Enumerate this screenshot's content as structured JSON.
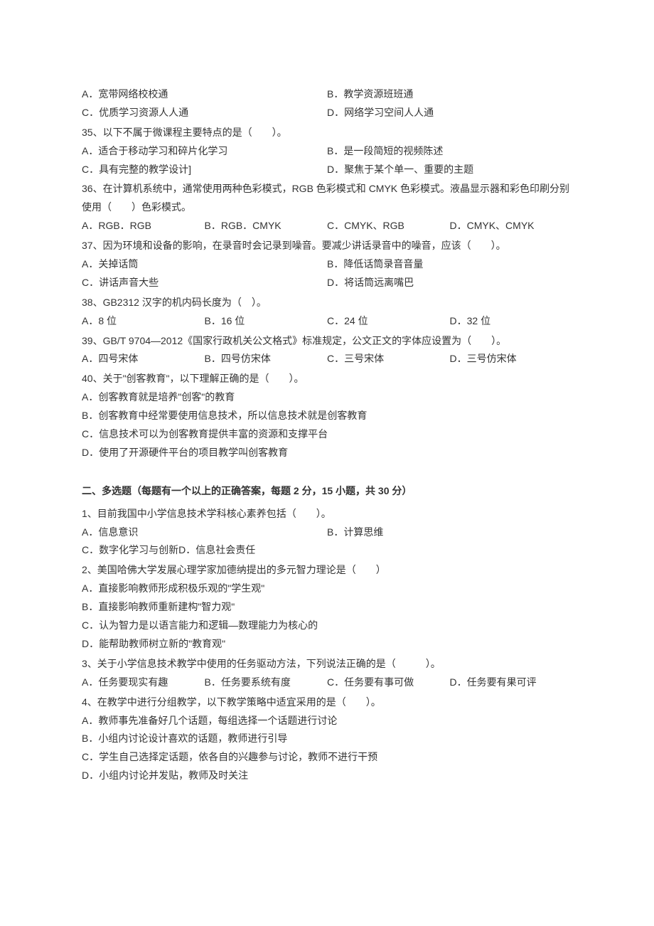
{
  "q_partial_opts": {
    "a": "A．宽带网络校校通",
    "b": "B．教学资源班班通",
    "c": "C．优质学习资源人人通",
    "d": "D．网络学习空间人人通"
  },
  "q35": {
    "stem": "35、以下不属于微课程主要特点的是（　　）。",
    "a": "A．适合于移动学习和碎片化学习",
    "b": "B．是一段简短的视频陈述",
    "c": "C．具有完整的教学设计]",
    "d": "D．聚焦于某个单一、重要的主题"
  },
  "q36": {
    "stem": "36、在计算机系统中，通常使用两种色彩模式，RGB 色彩模式和 CMYK 色彩模式。液晶显示器和彩色印刷分别使用（　　）色彩模式。",
    "a": "A．RGB．RGB",
    "b": "B．RGB．CMYK",
    "c": "C．CMYK、RGB",
    "d": "D．CMYK、CMYK"
  },
  "q37": {
    "stem": "37、因为环境和设备的影响，在录音时会记录到噪音。要减少讲话录音中的噪音，应该（　　）。",
    "a": "A．关掉话筒",
    "b": "B．降低话筒录音音量",
    "c": "C．讲话声音大些",
    "d": "D．将话筒远离嘴巴"
  },
  "q38": {
    "stem": "38、GB2312 汉字的机内码长度为（　）。",
    "a": "A．8 位",
    "b": "B．16 位",
    "c": "C．24 位",
    "d": "D．32 位"
  },
  "q39": {
    "stem": "39、GB/T 9704—2012《国家行政机关公文格式》标准规定，公文正文的字体应设置为（　　）。",
    "a": "A．四号宋体",
    "b": "B．四号仿宋体",
    "c": "C．三号宋体",
    "d": "D．三号仿宋体"
  },
  "q40": {
    "stem": "40、关于\"创客教育\"，以下理解正确的是（　　）。",
    "a": "A．创客教育就是培养\"创客\"的教育",
    "b": "B．创客教育中经常要使用信息技术，所以信息技术就是创客教育",
    "c": "C．信息技术可以为创客教育提供丰富的资源和支撑平台",
    "d": "D．使用了开源硬件平台的项目教学叫创客教育"
  },
  "section2": {
    "title": "二、多选题（每题有一个以上的正确答案，每题 2 分，15 小题，共 30 分）"
  },
  "m1": {
    "stem": "1、目前我国中小学信息技术学科核心素养包括（　　）。",
    "a": "A．信息意识",
    "b": "B．计算思维",
    "c": "C．数字化学习与创新",
    "d": "D．信息社会责任"
  },
  "m2": {
    "stem": "2、美国哈佛大学发展心理学家加德纳提出的多元智力理论是（　　）",
    "a": "A．直接影响教师形成积极乐观的\"学生观\"",
    "b": "B．直接影响教师重新建构\"智力观\"",
    "c": "C．认为智力是以语言能力和逻辑—数理能力为核心的",
    "d": "D．能帮助教师树立新的\"教育观\""
  },
  "m3": {
    "stem": "3、关于小学信息技术教学中使用的任务驱动方法，下列说法正确的是（　　　）。",
    "a": "A．任务要现实有趣",
    "b": "B．任务要系统有度",
    "c": "C．任务要有事可做",
    "d": "D．任务要有果可评"
  },
  "m4": {
    "stem": "4、在教学中进行分组教学，以下教学策略中适宜采用的是（　　）。",
    "a": "A．教师事先准备好几个话题，每组选择一个话题进行讨论",
    "b": "B．小组内讨论设计喜欢的话题，教师进行引导",
    "c": "C．学生自己选择定话题，依各自的兴趣参与讨论，教师不进行干预",
    "d": "D．小组内讨论并发贴，教师及时关注"
  }
}
